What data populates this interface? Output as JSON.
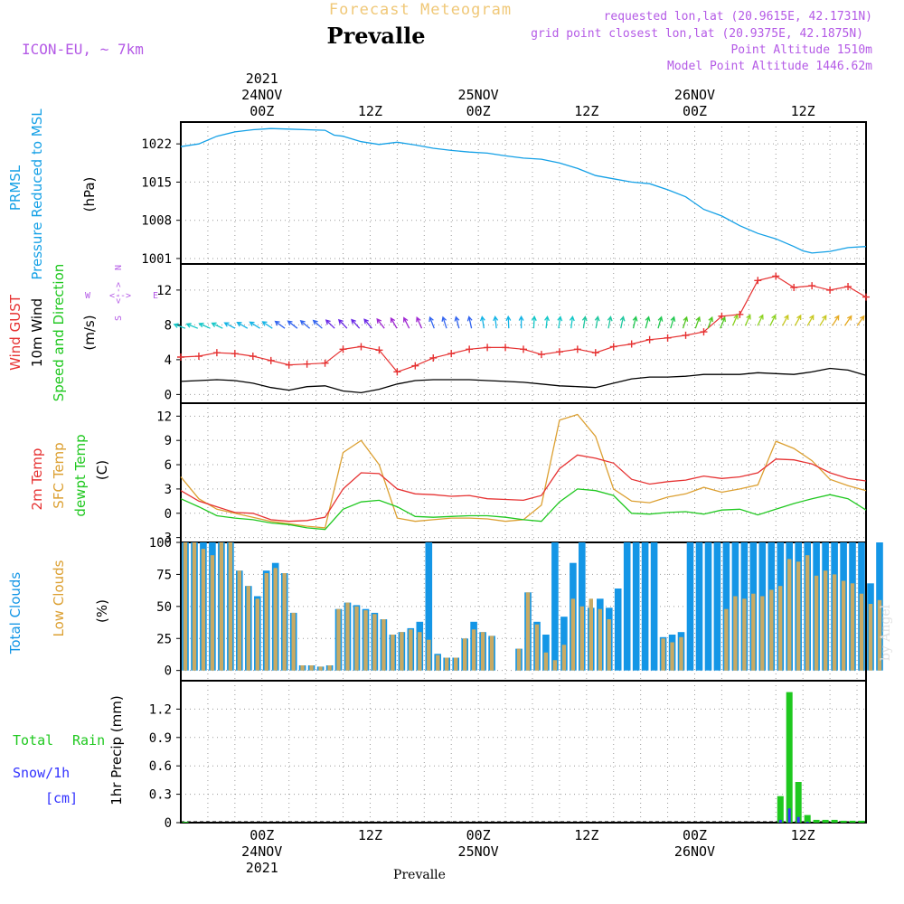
{
  "header": {
    "product": "Forecast Meteogram",
    "station": "Prevalle",
    "model": "ICON-EU, ~ 7km",
    "requested": "requested lon,lat (20.9615E, 42.1731N)",
    "gridpoint": "grid point closest lon,lat (20.9375E, 42.1875N)",
    "altitude": "Point Altitude 1510m",
    "model_altitude": "Model Point Altitude 1446.62m",
    "footer": "Prevalle",
    "credit": "by Angel"
  },
  "colors": {
    "pressure": "#14a0e6",
    "gust": "#e63232",
    "wind": "#000000",
    "sfc": "#dca032",
    "temp2m": "#e63232",
    "dewpt": "#20c820",
    "total_clouds": "#1496e6",
    "low_clouds": "#c8aa64",
    "rain": "#1ec81e",
    "snow": "#3232ff",
    "purple": "#b45ae6"
  },
  "time_axis": {
    "top_labels": [
      {
        "x": 24,
        "lines": [
          "2021",
          "24NOV",
          "00Z"
        ]
      },
      {
        "x": 36,
        "lines": [
          "12Z"
        ]
      },
      {
        "x": 48,
        "lines": [
          "25NOV",
          "00Z"
        ]
      },
      {
        "x": 60,
        "lines": [
          "12Z"
        ]
      },
      {
        "x": 72,
        "lines": [
          "26NOV",
          "00Z"
        ]
      },
      {
        "x": 84,
        "lines": [
          "12Z"
        ]
      }
    ],
    "bottom_labels": [
      {
        "x": 24,
        "lines": [
          "00Z",
          "24NOV",
          "2021"
        ]
      },
      {
        "x": 36,
        "lines": [
          "12Z"
        ]
      },
      {
        "x": 48,
        "lines": [
          "00Z",
          "25NOV"
        ]
      },
      {
        "x": 60,
        "lines": [
          "12Z"
        ]
      },
      {
        "x": 72,
        "lines": [
          "00Z",
          "26NOV"
        ]
      },
      {
        "x": 84,
        "lines": [
          "12Z"
        ]
      }
    ]
  },
  "panels": {
    "pressure": {
      "labels": [
        "PRMSL",
        "Pressure Reduced to MSL"
      ],
      "unit": "(hPa)",
      "ticks": [
        "1022",
        "1015",
        "1008",
        "1001"
      ]
    },
    "wind": {
      "labels": [
        "Wind GUST",
        "10m Wind",
        "Speed and Direction"
      ],
      "unit": "(m/s)",
      "ticks": [
        "12",
        "8",
        "4",
        "0"
      ],
      "compass": [
        "N",
        "S",
        "W",
        "E"
      ]
    },
    "temp": {
      "labels": [
        "2m Temp",
        "SFC Temp",
        "dewpt Temp"
      ],
      "unit": "(C)",
      "ticks": [
        "12",
        "9",
        "6",
        "3",
        "0",
        "-3"
      ]
    },
    "clouds": {
      "labels": [
        "Total Clouds",
        "Low Clouds"
      ],
      "unit": "(%)",
      "ticks": [
        "100",
        "75",
        "50",
        "25",
        "0"
      ]
    },
    "precip": {
      "labels": [
        "Total",
        "Rain",
        "Snow/1h",
        "[cm]",
        "1hr Precip (mm)"
      ],
      "ticks": [
        "1.2",
        "0.9",
        "0.6",
        "0.3",
        "0"
      ]
    }
  },
  "chart_data": [
    {
      "type": "line",
      "title": "PRMSL Pressure Reduced to MSL",
      "ylabel": "(hPa)",
      "xlim": [
        15,
        91
      ],
      "ylim": [
        1000,
        1026
      ],
      "x_unit": "forecast hour (0 = 23NOV 00Z)",
      "x": [
        15,
        17,
        19,
        21,
        23,
        25,
        27,
        29,
        31,
        32,
        33,
        35,
        37,
        39,
        41,
        43,
        45,
        47,
        49,
        51,
        53,
        55,
        57,
        59,
        61,
        63,
        65,
        67,
        69,
        71,
        73,
        75,
        77,
        79,
        81,
        83,
        84,
        85,
        87,
        89,
        91
      ],
      "series": [
        {
          "name": "PRMSL",
          "values": [
            1021.5,
            1022.0,
            1023.4,
            1024.2,
            1024.6,
            1024.8,
            1024.7,
            1024.6,
            1024.5,
            1023.6,
            1023.4,
            1022.4,
            1021.9,
            1022.3,
            1021.8,
            1021.2,
            1020.8,
            1020.5,
            1020.3,
            1019.8,
            1019.4,
            1019.2,
            1018.5,
            1017.5,
            1016.2,
            1015.6,
            1015.0,
            1014.7,
            1013.6,
            1012.3,
            1010.0,
            1008.8,
            1007.0,
            1005.6,
            1004.6,
            1003.2,
            1002.4,
            1002.0,
            1002.3,
            1003.0,
            1003.2
          ]
        }
      ]
    },
    {
      "type": "line",
      "title": "Wind GUST / 10m Wind Speed and Direction",
      "ylabel": "(m/s)",
      "xlim": [
        15,
        91
      ],
      "ylim": [
        -1,
        15
      ],
      "x": [
        15,
        17,
        19,
        21,
        23,
        25,
        27,
        29,
        31,
        33,
        35,
        37,
        39,
        41,
        43,
        45,
        47,
        49,
        51,
        53,
        55,
        57,
        59,
        61,
        63,
        65,
        67,
        69,
        71,
        73,
        75,
        77,
        79,
        81,
        83,
        85,
        87,
        89,
        91
      ],
      "series": [
        {
          "name": "Wind GUST",
          "values": [
            4.3,
            4.4,
            4.8,
            4.7,
            4.4,
            3.9,
            3.4,
            3.5,
            3.6,
            5.2,
            5.5,
            5.1,
            2.6,
            3.3,
            4.2,
            4.7,
            5.2,
            5.4,
            5.4,
            5.2,
            4.6,
            4.9,
            5.2,
            4.8,
            5.5,
            5.8,
            6.3,
            6.5,
            6.8,
            7.2,
            9.0,
            9.2,
            13.1,
            13.6,
            12.3,
            12.5,
            12.0,
            12.4,
            11.2
          ]
        },
        {
          "name": "10m Wind",
          "values": [
            1.5,
            1.6,
            1.7,
            1.6,
            1.3,
            0.8,
            0.5,
            0.9,
            1.0,
            0.4,
            0.2,
            0.6,
            1.2,
            1.6,
            1.7,
            1.7,
            1.7,
            1.6,
            1.5,
            1.4,
            1.2,
            1.0,
            0.9,
            0.8,
            1.3,
            1.8,
            2.0,
            2.0,
            2.1,
            2.3,
            2.3,
            2.3,
            2.5,
            2.4,
            2.3,
            2.6,
            3.0,
            2.8,
            2.2
          ]
        }
      ]
    },
    {
      "type": "line",
      "title": "2m Temp / SFC Temp / dewpt Temp",
      "ylabel": "(C)",
      "xlim": [
        15,
        91
      ],
      "ylim": [
        -3.6,
        13.6
      ],
      "x": [
        15,
        17,
        19,
        21,
        23,
        25,
        27,
        29,
        31,
        33,
        35,
        37,
        39,
        41,
        43,
        45,
        47,
        49,
        51,
        53,
        55,
        57,
        59,
        61,
        63,
        65,
        67,
        69,
        71,
        73,
        75,
        77,
        79,
        81,
        83,
        85,
        87,
        89,
        91
      ],
      "series": [
        {
          "name": "2m Temp",
          "values": [
            2.8,
            1.5,
            0.8,
            0.1,
            0.0,
            -0.8,
            -1.0,
            -0.9,
            -0.5,
            3.0,
            5.0,
            4.9,
            3.0,
            2.4,
            2.3,
            2.1,
            2.2,
            1.8,
            1.7,
            1.6,
            2.2,
            5.5,
            7.2,
            6.8,
            6.2,
            4.2,
            3.6,
            3.9,
            4.1,
            4.6,
            4.3,
            4.5,
            5.0,
            6.7,
            6.6,
            6.1,
            5.0,
            4.3,
            4.0
          ]
        },
        {
          "name": "SFC Temp",
          "values": [
            4.5,
            1.8,
            0.5,
            0.0,
            -0.5,
            -1.0,
            -1.3,
            -1.6,
            -1.8,
            7.5,
            9.0,
            6.0,
            -0.6,
            -1.0,
            -0.8,
            -0.6,
            -0.6,
            -0.7,
            -1.0,
            -0.8,
            1.0,
            11.5,
            12.2,
            9.5,
            3.0,
            1.5,
            1.3,
            2.0,
            2.4,
            3.2,
            2.6,
            3.0,
            3.5,
            8.9,
            8.0,
            6.5,
            4.2,
            3.4,
            2.8
          ]
        },
        {
          "name": "dewpt Temp",
          "values": [
            1.8,
            0.8,
            -0.3,
            -0.6,
            -0.8,
            -1.2,
            -1.4,
            -1.8,
            -2.0,
            0.5,
            1.4,
            1.6,
            0.8,
            -0.4,
            -0.5,
            -0.4,
            -0.3,
            -0.3,
            -0.5,
            -0.8,
            -1.0,
            1.4,
            3.0,
            2.8,
            2.2,
            0.0,
            -0.1,
            0.1,
            0.2,
            -0.1,
            0.4,
            0.5,
            -0.2,
            0.5,
            1.2,
            1.8,
            2.3,
            1.8,
            0.4
          ]
        }
      ]
    },
    {
      "type": "bar",
      "title": "Total Clouds / Low Clouds",
      "ylabel": "(%)",
      "ylim": [
        -8,
        100
      ],
      "x_start": 15,
      "x_step": 1,
      "series": [
        {
          "name": "Total Clouds",
          "values": [
            100,
            100,
            100,
            100,
            100,
            100,
            78,
            66,
            58,
            78,
            84,
            76,
            45,
            4,
            4,
            3,
            4,
            48,
            53,
            51,
            48,
            45,
            40,
            28,
            30,
            33,
            38,
            100,
            13,
            10,
            10,
            25,
            38,
            30,
            27,
            0,
            0,
            17,
            61,
            38,
            28,
            100,
            42,
            84,
            100,
            49,
            56,
            49,
            64,
            100,
            100,
            100,
            100,
            26,
            28,
            30,
            100,
            100,
            100,
            100,
            100,
            100,
            100,
            100,
            100,
            100,
            100,
            100,
            100,
            100,
            100,
            100,
            100,
            100,
            100,
            100,
            68,
            100
          ]
        },
        {
          "name": "Low Clouds",
          "values": [
            100,
            100,
            95,
            90,
            100,
            100,
            78,
            66,
            56,
            76,
            80,
            76,
            45,
            4,
            4,
            3,
            4,
            48,
            53,
            50,
            47,
            44,
            40,
            28,
            30,
            32,
            30,
            24,
            12,
            10,
            10,
            25,
            32,
            30,
            27,
            0,
            0,
            17,
            61,
            36,
            14,
            8,
            20,
            56,
            50,
            56,
            48,
            40,
            0,
            0,
            0,
            0,
            0,
            25,
            22,
            26,
            0,
            0,
            0,
            0,
            48,
            58,
            56,
            60,
            58,
            63,
            66,
            87,
            85,
            90,
            74,
            78,
            75,
            70,
            68,
            60,
            52,
            55
          ]
        }
      ]
    },
    {
      "type": "bar",
      "title": "1hr Precip (mm)",
      "ylabel": "1hr Precip (mm)",
      "ylim": [
        0,
        1.5
      ],
      "xlabel": "",
      "x": [
        15,
        81,
        82,
        83,
        84,
        85,
        86,
        87,
        88,
        89,
        90
      ],
      "series": [
        {
          "name": "Total Rain",
          "values": [
            0.01,
            0.28,
            1.38,
            0.43,
            0.08,
            0.03,
            0.03,
            0.03,
            0.02,
            0.02,
            0.02
          ]
        },
        {
          "name": "Snow/1h",
          "values": [
            0,
            0.03,
            0.15,
            0.06,
            0.01,
            0,
            0,
            0,
            0,
            0,
            0
          ]
        }
      ]
    }
  ]
}
